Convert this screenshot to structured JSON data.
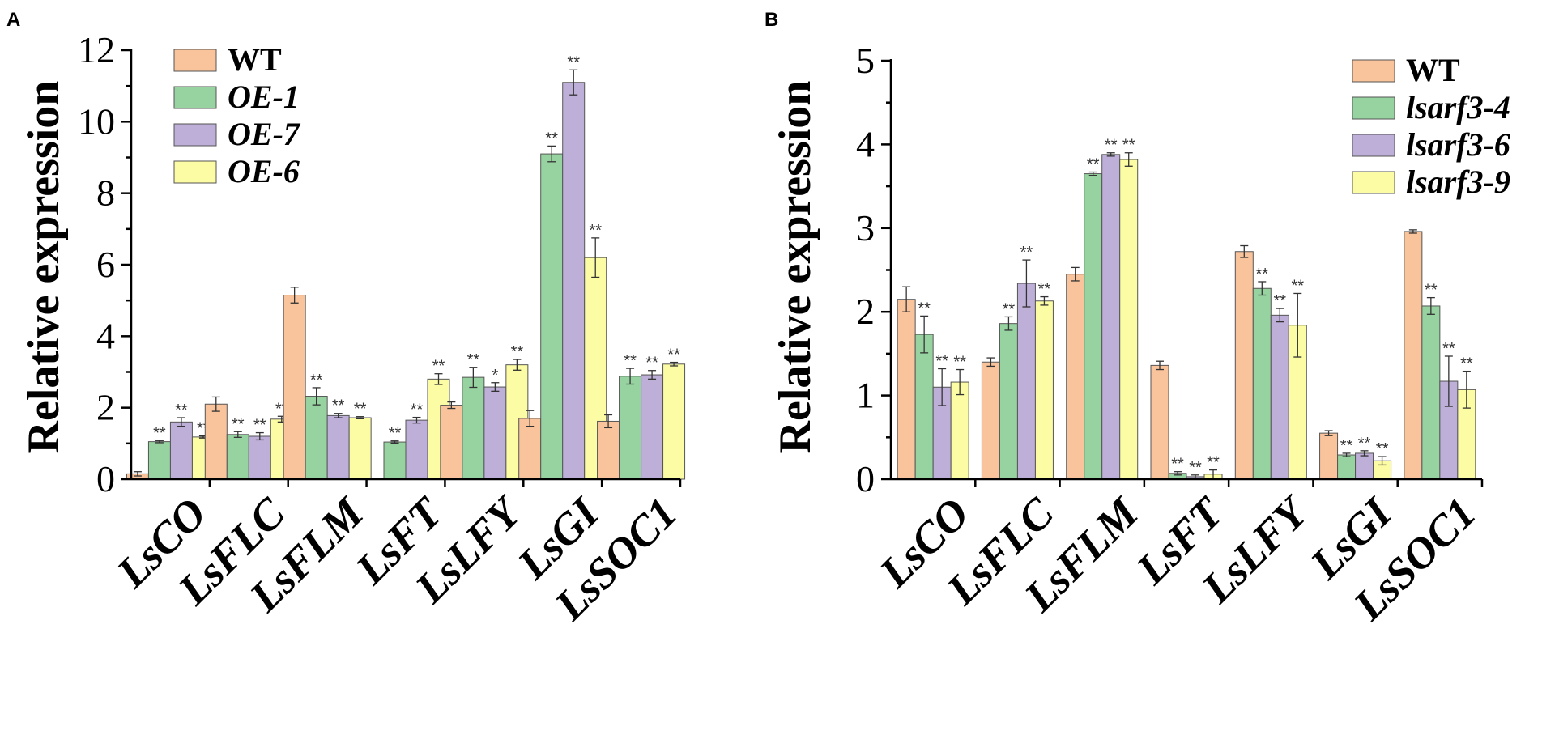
{
  "colors": {
    "WT": "#F9C49B",
    "S1": "#97D3A0",
    "S2": "#BDAFD8",
    "S3": "#FCFCA4"
  },
  "chart_data": [
    {
      "panel": "A",
      "type": "bar",
      "ylabel": "Relative expression",
      "ylim": [
        0,
        12
      ],
      "yticks": [
        0,
        2,
        4,
        6,
        8,
        10,
        12
      ],
      "categories": [
        "LsCO",
        "LsFLC",
        "LsFLM",
        "LsFT",
        "LsLFY",
        "LsGI",
        "LsSOC1"
      ],
      "series": [
        {
          "name": "WT",
          "italic": false,
          "values": [
            0.15,
            2.1,
            5.15,
            0.02,
            2.07,
            1.7,
            1.62
          ],
          "errors": [
            0.06,
            0.2,
            0.22,
            0.01,
            0.09,
            0.22,
            0.18
          ],
          "sig": [
            "",
            "",
            "",
            "",
            "",
            "",
            ""
          ]
        },
        {
          "name": "OE-1",
          "italic": true,
          "values": [
            1.05,
            1.25,
            2.32,
            1.04,
            2.85,
            9.1,
            2.88
          ],
          "errors": [
            0.03,
            0.08,
            0.24,
            0.03,
            0.28,
            0.22,
            0.22
          ],
          "sig": [
            "**",
            "**",
            "**",
            "**",
            "**",
            "**",
            "**"
          ]
        },
        {
          "name": "OE-7",
          "italic": true,
          "values": [
            1.6,
            1.2,
            1.78,
            1.65,
            2.58,
            11.1,
            2.92
          ],
          "errors": [
            0.12,
            0.1,
            0.06,
            0.08,
            0.12,
            0.35,
            0.12
          ],
          "sig": [
            "**",
            "**",
            "**",
            "**",
            "*",
            "**",
            "**"
          ]
        },
        {
          "name": "OE-6",
          "italic": true,
          "values": [
            1.18,
            1.68,
            1.72,
            2.8,
            3.2,
            6.2,
            3.22
          ],
          "errors": [
            0.03,
            0.08,
            0.03,
            0.15,
            0.15,
            0.55,
            0.05
          ],
          "sig": [
            "**",
            "**",
            "**",
            "**",
            "**",
            "**",
            "**"
          ]
        }
      ]
    },
    {
      "panel": "B",
      "type": "bar",
      "ylabel": "Relative expression",
      "ylim": [
        0,
        5
      ],
      "yticks": [
        0,
        1,
        2,
        3,
        4,
        5
      ],
      "categories": [
        "LsCO",
        "LsFLC",
        "LsFLM",
        "LsFT",
        "LsLFY",
        "LsGI",
        "LsSOC1"
      ],
      "series": [
        {
          "name": "WT",
          "italic": false,
          "values": [
            2.15,
            1.4,
            2.45,
            1.36,
            2.72,
            0.55,
            2.96
          ],
          "errors": [
            0.15,
            0.05,
            0.08,
            0.05,
            0.07,
            0.03,
            0.02
          ],
          "sig": [
            "",
            "",
            "",
            "",
            "",
            "",
            ""
          ]
        },
        {
          "name": "lsarf3-4",
          "italic": true,
          "values": [
            1.73,
            1.86,
            3.65,
            0.07,
            2.28,
            0.29,
            2.07
          ],
          "errors": [
            0.22,
            0.08,
            0.02,
            0.02,
            0.08,
            0.02,
            0.1
          ],
          "sig": [
            "**",
            "**",
            "**",
            "**",
            "**",
            "**",
            "**"
          ]
        },
        {
          "name": "lsarf3-6",
          "italic": true,
          "values": [
            1.1,
            2.34,
            3.88,
            0.03,
            1.96,
            0.31,
            1.17
          ],
          "errors": [
            0.22,
            0.28,
            0.02,
            0.02,
            0.08,
            0.03,
            0.3
          ],
          "sig": [
            "**",
            "**",
            "**",
            "**",
            "**",
            "**",
            "**"
          ]
        },
        {
          "name": "lsarf3-9",
          "italic": true,
          "values": [
            1.16,
            2.13,
            3.82,
            0.06,
            1.84,
            0.22,
            1.07
          ],
          "errors": [
            0.15,
            0.05,
            0.08,
            0.05,
            0.38,
            0.05,
            0.22
          ],
          "sig": [
            "**",
            "**",
            "**",
            "**",
            "**",
            "**",
            "**"
          ]
        }
      ]
    }
  ]
}
